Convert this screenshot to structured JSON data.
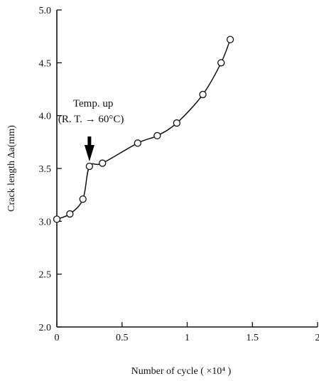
{
  "chart_data": {
    "type": "line",
    "title": "",
    "xlabel": "Number of cycle ( ×10⁴ )",
    "ylabel": "Crack length  Δa(mm)",
    "xlim": [
      0,
      2
    ],
    "ylim": [
      2.0,
      5.0
    ],
    "x_ticks": [
      "0",
      "0.5",
      "1",
      "1.5",
      "2"
    ],
    "x_tick_values": [
      0,
      0.5,
      1,
      1.5,
      2
    ],
    "y_ticks": [
      "5.0",
      "4.5",
      "4.0",
      "3.5",
      "3.0",
      "2.5",
      "2.0"
    ],
    "y_tick_values": [
      5.0,
      4.5,
      4.0,
      3.5,
      3.0,
      2.5,
      2.0
    ],
    "grid": false,
    "marker": "open-circle",
    "series": [
      {
        "x": [
          0.0,
          0.1,
          0.2,
          0.25,
          0.35,
          0.62,
          0.77,
          0.92,
          1.12,
          1.26,
          1.33
        ],
        "y": [
          3.02,
          3.07,
          3.21,
          3.52,
          3.55,
          3.74,
          3.81,
          3.93,
          4.2,
          4.5,
          4.72
        ]
      }
    ],
    "annotations": [
      {
        "line1": "Temp. up",
        "line2": "(R. T. → 60°C)",
        "arrow": "down",
        "x": 0.25,
        "y": 3.52
      }
    ]
  }
}
